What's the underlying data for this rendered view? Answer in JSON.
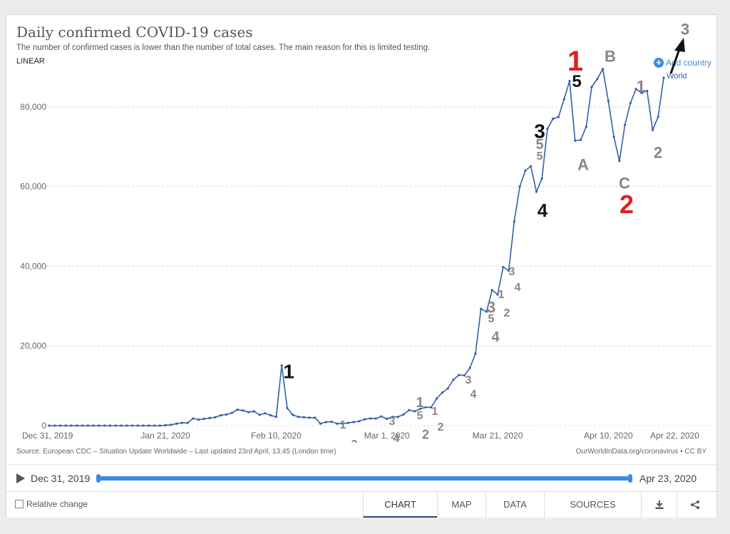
{
  "header": {
    "title": "Daily confirmed COVID-19 cases",
    "subtitle": "The number of confirmed cases is lower than the number of total cases. The main reason for this is limited testing.",
    "scale_label": "LINEAR",
    "add_country_label": "Add country",
    "legend_label": "World"
  },
  "chart_data": {
    "type": "line",
    "title": "Daily confirmed COVID-19 cases",
    "ylim": [
      0,
      90000
    ],
    "yticks": [
      "0",
      "20,000",
      "40,000",
      "60,000",
      "80,000"
    ],
    "xticks": [
      "Dec 31, 2019",
      "Jan 21, 2020",
      "Feb 10, 2020",
      "Mar 1, 2020",
      "Mar 21, 2020",
      "Apr 10, 2020",
      "Apr 22, 2020"
    ],
    "x_start": "2019-12-31",
    "x_end": "2020-04-22",
    "grid": true,
    "series": [
      {
        "name": "World",
        "color": "#3360a9",
        "values": [
          0,
          0,
          0,
          0,
          0,
          0,
          0,
          0,
          0,
          0,
          0,
          0,
          0,
          0,
          0,
          0,
          0,
          0,
          0,
          0,
          0,
          100,
          200,
          500,
          700,
          700,
          1800,
          1500,
          1700,
          1900,
          2100,
          2600,
          2800,
          3200,
          4000,
          3800,
          3400,
          3600,
          2700,
          3100,
          2600,
          2200,
          15100,
          4400,
          2700,
          2200,
          2100,
          2000,
          2000,
          500,
          900,
          1000,
          500,
          500,
          700,
          900,
          1100,
          1600,
          1800,
          1800,
          2300,
          1700,
          2200,
          2200,
          2800,
          3900,
          3600,
          4200,
          4600,
          4600,
          6800,
          8300,
          9300,
          11500,
          12700,
          12600,
          14500,
          18100,
          29300,
          28600,
          34000,
          32900,
          39800,
          38900,
          51200,
          60000,
          64000,
          65100,
          58700,
          62000,
          74500,
          77000,
          77500,
          81900,
          86500,
          71500,
          71700,
          75000,
          85000,
          87000,
          89500,
          81500,
          72500,
          66400,
          75500,
          81000,
          84500,
          83500,
          84000,
          74200,
          77500,
          87300
        ]
      }
    ],
    "annotations": [
      {
        "text": "0",
        "color": "#111111"
      },
      {
        "text": "1",
        "color": "#111111"
      },
      {
        "text": "2",
        "color": "#111111"
      },
      {
        "text": "1",
        "color": "#8e8380"
      },
      {
        "text": "2",
        "color": "#8e8380"
      },
      {
        "text": "3",
        "color": "#8e8380"
      },
      {
        "text": "4",
        "color": "#8e8380"
      },
      {
        "text": "1",
        "color": "#8e8380"
      },
      {
        "text": "5",
        "color": "#8e8380"
      },
      {
        "text": "2",
        "color": "#8e8380"
      },
      {
        "text": "1",
        "color": "#8e8380"
      },
      {
        "text": "2",
        "color": "#8e8380"
      },
      {
        "text": "3",
        "color": "#8e8380"
      },
      {
        "text": "4",
        "color": "#8e8380"
      },
      {
        "text": "3",
        "color": "#8e8380"
      },
      {
        "text": "5",
        "color": "#8e8380"
      },
      {
        "text": "4",
        "color": "#8e8380"
      },
      {
        "text": "1",
        "color": "#8e8380"
      },
      {
        "text": "2",
        "color": "#8e8380"
      },
      {
        "text": "3",
        "color": "#8e8380"
      },
      {
        "text": "4",
        "color": "#8e8380"
      },
      {
        "text": "3",
        "color": "#111111"
      },
      {
        "text": "5",
        "color": "#8e8380"
      },
      {
        "text": "5",
        "color": "#8e8380"
      },
      {
        "text": "4",
        "color": "#111111"
      },
      {
        "text": "1",
        "color": "#e02020"
      },
      {
        "text": "5",
        "color": "#111111"
      },
      {
        "text": "A",
        "color": "#8e8380"
      },
      {
        "text": "B",
        "color": "#8e8380"
      },
      {
        "text": "C",
        "color": "#8e8380"
      },
      {
        "text": "2",
        "color": "#e02020"
      },
      {
        "text": "1",
        "color": "#8e8380"
      },
      {
        "text": "2",
        "color": "#8e8380"
      },
      {
        "text": "3",
        "color": "#8e8380"
      }
    ]
  },
  "footer": {
    "source": "Source: European CDC – Situation Update Worldwide – Last updated 23rd April, 13:45 (London time)",
    "site": "OurWorldInData.org/coronavirus • CC BY"
  },
  "timeline": {
    "start_label": "Dec 31, 2019",
    "end_label": "Apr 23, 2020",
    "accent": "#3a8be8"
  },
  "controls": {
    "relative_change_label": "Relative change",
    "tabs": [
      "CHART",
      "MAP",
      "DATA",
      "SOURCES"
    ],
    "active_tab": "CHART",
    "icons": [
      "download-icon",
      "share-icon"
    ]
  }
}
